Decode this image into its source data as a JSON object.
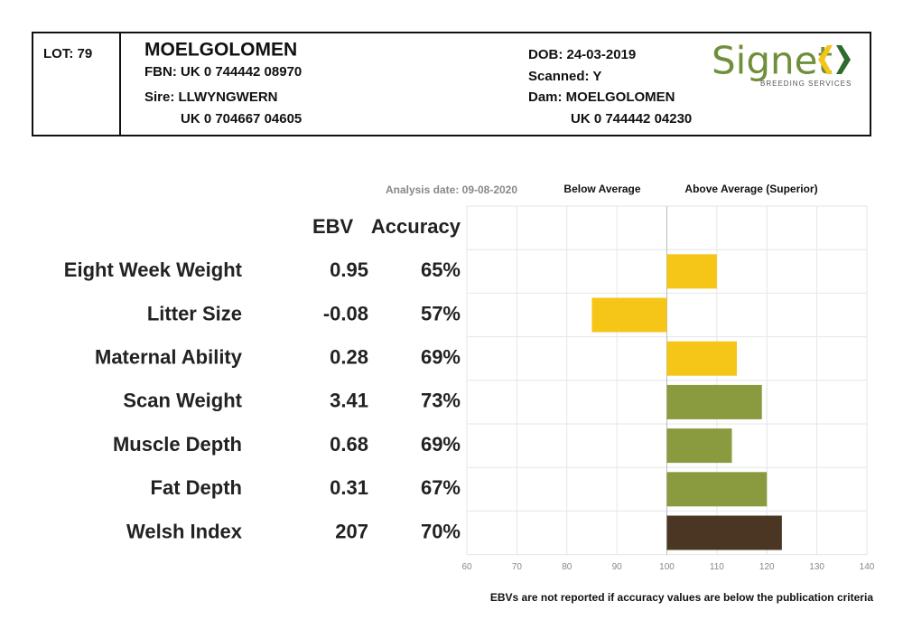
{
  "header": {
    "lot": "LOT: 79",
    "name": "MOELGOLOMEN",
    "fbn": "FBN: UK 0 744442 08970",
    "sire": "Sire: LLWYNGWERN",
    "sire_id": "UK 0 704667 04605",
    "dob": "DOB: 24-03-2019",
    "scanned": "Scanned: Y",
    "dam": "Dam: MOELGOLOMEN",
    "dam_id": "UK 0 744442 04230",
    "logo": "Signet",
    "logo_sub": "BREEDING SERVICES"
  },
  "chart_data": {
    "type": "bar",
    "orientation": "horizontal",
    "analysis_date": "Analysis date: 09-08-2020",
    "below_label": "Below Average",
    "above_label": "Above Average (Superior)",
    "ebv_header": "EBV",
    "accuracy_header": "Accuracy",
    "categories": [
      "Eight Week Weight",
      "Litter Size",
      "Maternal Ability",
      "Scan Weight",
      "Muscle Depth",
      "Fat Depth",
      "Welsh Index"
    ],
    "ebv": [
      "0.95",
      "-0.08",
      "0.28",
      "3.41",
      "0.68",
      "0.31",
      "207"
    ],
    "accuracy": [
      "65%",
      "57%",
      "69%",
      "73%",
      "69%",
      "67%",
      "70%"
    ],
    "values": [
      110,
      85,
      114,
      119,
      113,
      120,
      123
    ],
    "colors": [
      "#f5c518",
      "#f5c518",
      "#f5c518",
      "#8a9a3f",
      "#8a9a3f",
      "#8a9a3f",
      "#4a3622"
    ],
    "baseline": 100,
    "xlim": [
      60,
      140
    ],
    "xticks": [
      60,
      70,
      80,
      90,
      100,
      110,
      120,
      130,
      140
    ],
    "grid": true,
    "footnote": "EBVs are not reported if accuracy values are below the publication criteria"
  }
}
